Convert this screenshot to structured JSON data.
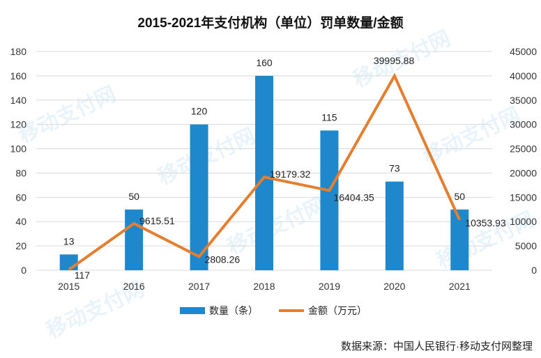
{
  "title": "2015-2021年支付机构（单位）罚单数量/金额",
  "source": "数据来源：中国人民银行·移动支付网整理",
  "watermark": "移动支付网",
  "legend": {
    "bar": "数量（条）",
    "line": "金额（万元）"
  },
  "colors": {
    "bar": "#1f87cc",
    "line": "#e67e30",
    "grid": "#d9d9d9"
  },
  "chart_data": {
    "type": "bar+line",
    "title": "2015-2021年支付机构（单位）罚单数量/金额",
    "categories": [
      "2015",
      "2016",
      "2017",
      "2018",
      "2019",
      "2020",
      "2021"
    ],
    "series": [
      {
        "name": "数量（条）",
        "type": "bar",
        "axis": "left",
        "values": [
          13,
          50,
          120,
          160,
          115,
          73,
          50
        ]
      },
      {
        "name": "金额（万元）",
        "type": "line",
        "axis": "right",
        "values": [
          117,
          9615.51,
          2808.26,
          19179.32,
          16404.35,
          39995.88,
          10353.93
        ]
      }
    ],
    "y_left": {
      "ylim": [
        0,
        180
      ],
      "ticks": [
        0,
        20,
        40,
        60,
        80,
        100,
        120,
        140,
        160,
        180
      ]
    },
    "y_right": {
      "ylim": [
        0,
        45000
      ],
      "ticks": [
        0,
        5000,
        10000,
        15000,
        20000,
        25000,
        30000,
        35000,
        40000,
        45000
      ]
    },
    "bar_labels": [
      "13",
      "50",
      "120",
      "160",
      "115",
      "73",
      "50"
    ],
    "line_labels": [
      "117",
      "9615.51",
      "2808.26",
      "19179.32",
      "16404.35",
      "39995.88",
      "10353.93"
    ],
    "grid": true,
    "legend_position": "bottom"
  }
}
